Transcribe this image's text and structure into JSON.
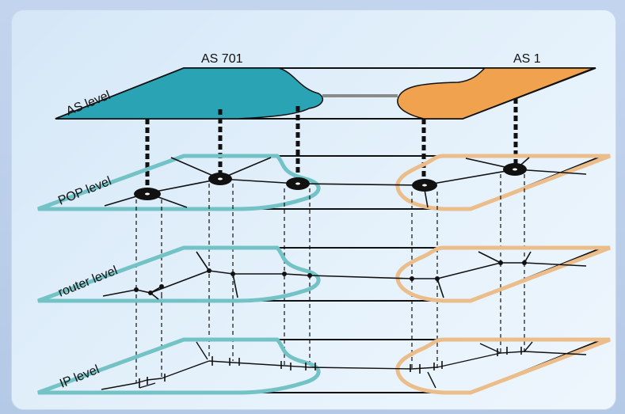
{
  "as_labels": {
    "left": "AS 701",
    "right": "AS 1"
  },
  "levels": [
    "AS level",
    "POP level",
    "router level",
    "IP level"
  ],
  "colors": {
    "as701": "#2aa3b5",
    "as1": "#f0a24e",
    "as701_outline": "#72c2c6",
    "as1_outline": "#eabd8a"
  }
}
